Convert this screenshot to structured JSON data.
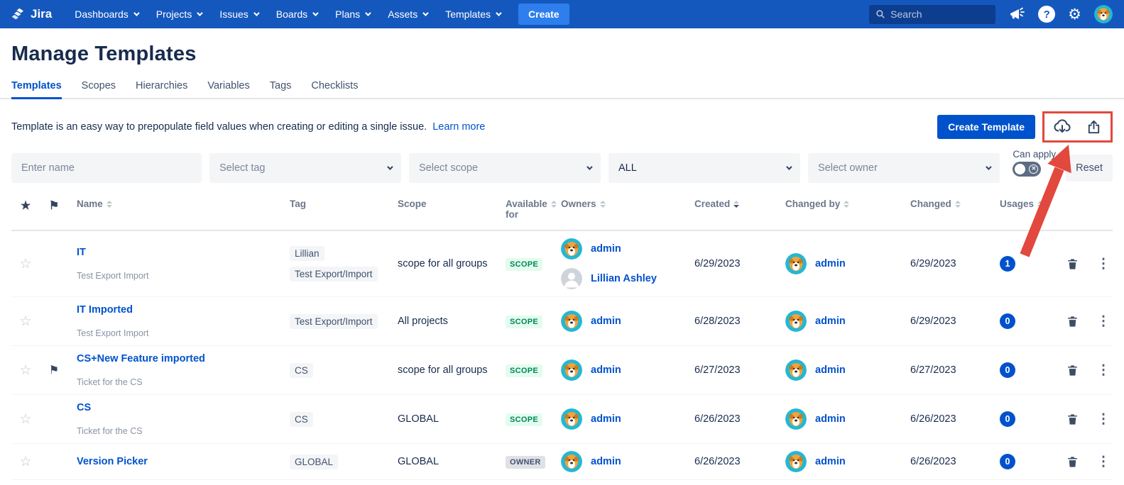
{
  "colors": {
    "nav_bg": "#1558BD",
    "accent": "#0052CC",
    "highlight_red": "#E2483D",
    "scope_badge_bg": "#E3FCEF",
    "scope_badge_text": "#00875A",
    "owner_badge_bg": "#DFE1E6",
    "owner_badge_text": "#42526E"
  },
  "nav": {
    "logo_text": "Jira",
    "items": [
      "Dashboards",
      "Projects",
      "Issues",
      "Boards",
      "Plans",
      "Assets",
      "Templates"
    ],
    "create_button": "Create",
    "search_placeholder": "Search"
  },
  "page": {
    "title": "Manage Templates",
    "tabs": [
      {
        "label": "Templates",
        "active": true
      },
      {
        "label": "Scopes",
        "active": false
      },
      {
        "label": "Hierarchies",
        "active": false
      },
      {
        "label": "Variables",
        "active": false
      },
      {
        "label": "Tags",
        "active": false
      },
      {
        "label": "Checklists",
        "active": false
      }
    ],
    "intro_text": "Template is an easy way to prepopulate field values when creating or editing a single issue.",
    "learn_more_label": "Learn more",
    "create_template_button": "Create Template"
  },
  "filters": {
    "name_placeholder": "Enter name",
    "tag_placeholder": "Select tag",
    "scope_placeholder": "Select scope",
    "type_value": "ALL",
    "owner_placeholder": "Select owner",
    "can_apply_label": "Can apply",
    "reset_label": "Reset"
  },
  "table": {
    "headers": {
      "name": "Name",
      "tag": "Tag",
      "scope": "Scope",
      "available_for": "Available for",
      "owners": "Owners",
      "created": "Created",
      "changed_by": "Changed by",
      "changed": "Changed",
      "usages": "Usages"
    },
    "rows": [
      {
        "name": "IT",
        "subtitle": "Test Export Import",
        "flagged": false,
        "tags": [
          "Lillian",
          "Test Export/Import"
        ],
        "scope": "scope for all groups",
        "available_for": "SCOPE",
        "owners": [
          {
            "name": "admin",
            "avatar": "dog"
          },
          {
            "name": "Lillian Ashley",
            "avatar": "person"
          }
        ],
        "created": "6/29/2023",
        "changed_by": {
          "name": "admin",
          "avatar": "dog"
        },
        "changed": "6/29/2023",
        "usages": "1"
      },
      {
        "name": "IT Imported",
        "subtitle": "Test Export Import",
        "flagged": false,
        "tags": [
          "Test Export/Import"
        ],
        "scope": "All projects",
        "available_for": "SCOPE",
        "owners": [
          {
            "name": "admin",
            "avatar": "dog"
          }
        ],
        "created": "6/28/2023",
        "changed_by": {
          "name": "admin",
          "avatar": "dog"
        },
        "changed": "6/29/2023",
        "usages": "0"
      },
      {
        "name": "CS+New Feature imported",
        "subtitle": "Ticket for the CS",
        "flagged": true,
        "tags": [
          "CS"
        ],
        "scope": "scope for all groups",
        "available_for": "SCOPE",
        "owners": [
          {
            "name": "admin",
            "avatar": "dog"
          }
        ],
        "created": "6/27/2023",
        "changed_by": {
          "name": "admin",
          "avatar": "dog"
        },
        "changed": "6/27/2023",
        "usages": "0"
      },
      {
        "name": "CS",
        "subtitle": "Ticket for the CS",
        "flagged": false,
        "tags": [
          "CS"
        ],
        "scope": "GLOBAL",
        "available_for": "SCOPE",
        "owners": [
          {
            "name": "admin",
            "avatar": "dog"
          }
        ],
        "created": "6/26/2023",
        "changed_by": {
          "name": "admin",
          "avatar": "dog"
        },
        "changed": "6/26/2023",
        "usages": "0"
      },
      {
        "name": "Version Picker",
        "subtitle": "",
        "flagged": false,
        "tags": [
          "GLOBAL"
        ],
        "scope": "GLOBAL",
        "available_for": "OWNER",
        "owners": [
          {
            "name": "admin",
            "avatar": "dog"
          }
        ],
        "created": "6/26/2023",
        "changed_by": {
          "name": "admin",
          "avatar": "dog"
        },
        "changed": "6/26/2023",
        "usages": "0"
      }
    ]
  }
}
